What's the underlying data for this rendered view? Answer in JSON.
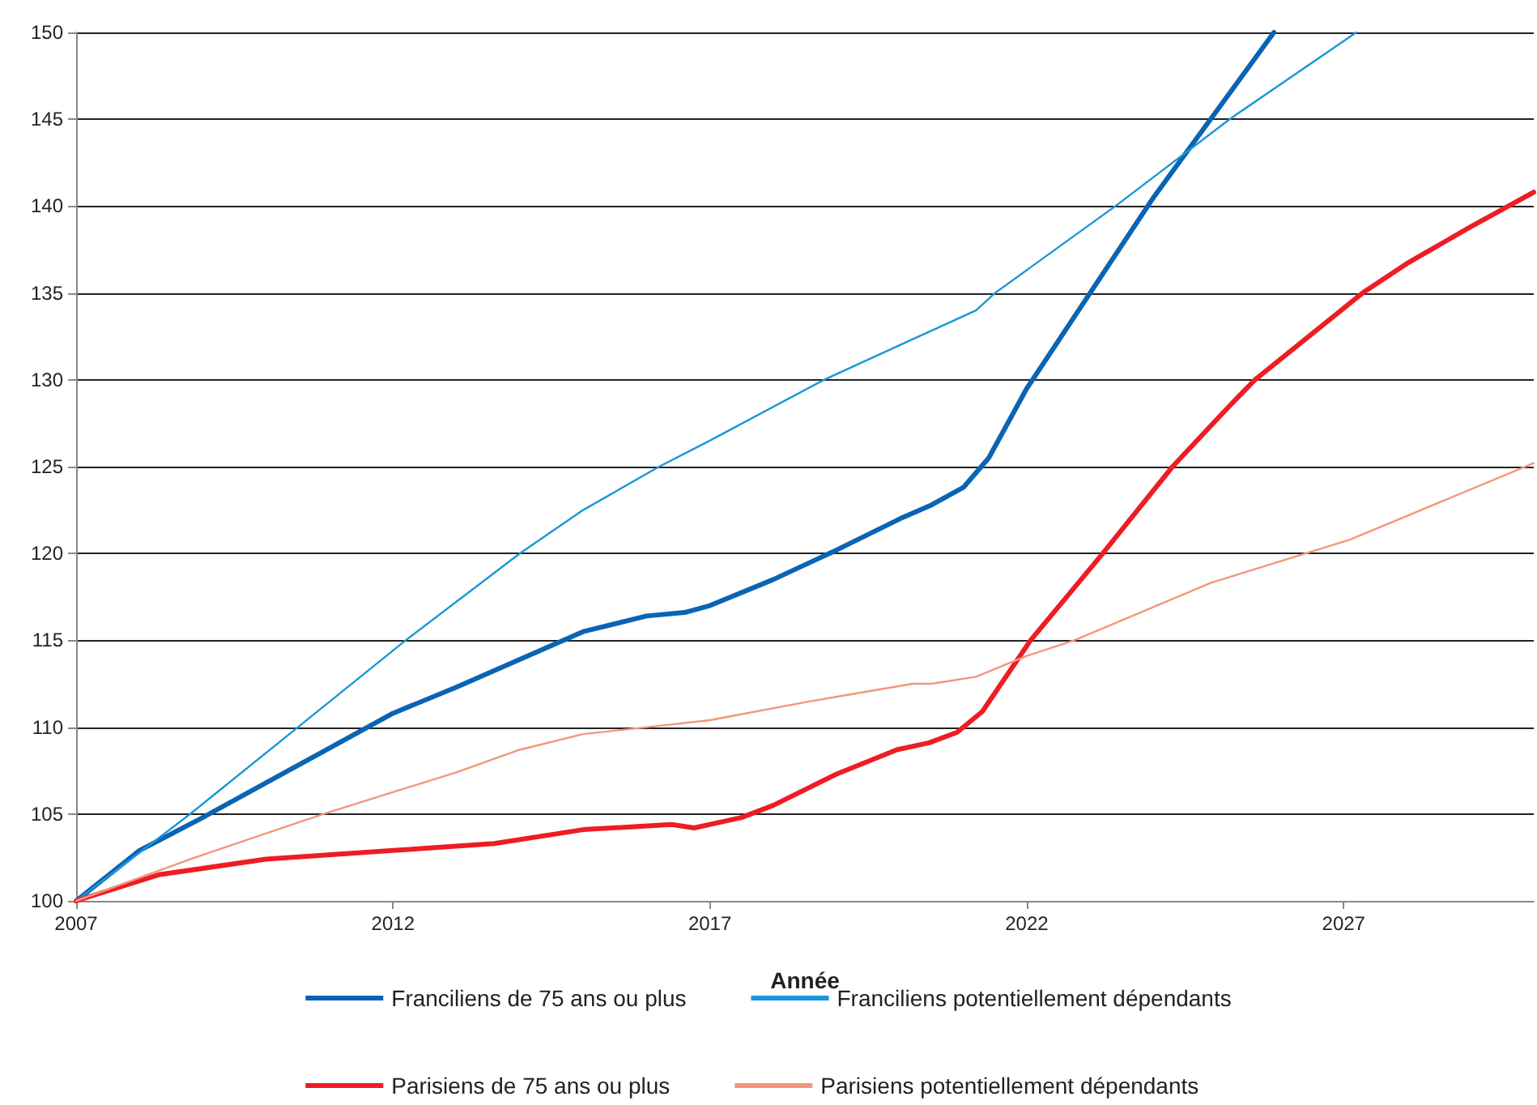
{
  "chart_data": {
    "type": "line",
    "xlabel": "Année",
    "xlim": [
      2007,
      2030
    ],
    "xticks": [
      2007,
      2012,
      2017,
      2022,
      2027
    ],
    "ylim": [
      100,
      150
    ],
    "yticks": [
      100,
      105,
      110,
      115,
      120,
      125,
      130,
      135,
      140,
      145,
      150
    ],
    "grid": "y",
    "legend": "bottom",
    "marker": "none",
    "line_style": "solid",
    "series": [
      {
        "name": "Franciliens de 75 ans ou plus",
        "color": "#0a64b4",
        "x": [
          2007,
          2008,
          2009,
          2010,
          2011,
          2012,
          2013,
          2014,
          2015,
          2016,
          2016.6,
          2017,
          2018,
          2019,
          2020,
          2020.5,
          2021,
          2021.4,
          2022,
          2023,
          2024,
          2025,
          2025.9
        ],
        "values": [
          100,
          102.9,
          104.8,
          106.8,
          108.8,
          110.8,
          112.3,
          113.9,
          115.5,
          116.4,
          116.6,
          117.0,
          118.5,
          120.2,
          122.0,
          122.8,
          123.8,
          125.5,
          129.5,
          135,
          140.5,
          145.5,
          150
        ]
      },
      {
        "name": "Franciliens potentiellement dépendants",
        "color": "#1a96d8",
        "x": [
          2007,
          2008.8,
          2010.5,
          2012.2,
          2014,
          2015,
          2016.2,
          2017,
          2018.8,
          2020,
          2021.2,
          2021.5,
          2023.4,
          2025.2,
          2027.2
        ],
        "values": [
          100,
          105,
          110,
          115,
          120,
          122.5,
          125,
          126.5,
          130,
          132,
          134,
          135,
          140,
          145,
          150
        ]
      },
      {
        "name": "Parisiens de 75 ans ou plus",
        "color": "#ee1c25",
        "x": [
          2007,
          2008.3,
          2010,
          2012,
          2013.6,
          2015,
          2016.4,
          2016.75,
          2017.5,
          2018,
          2019,
          2019.95,
          2020.46,
          2020.9,
          2021.3,
          2022.06,
          2023.2,
          2024.3,
          2025.2,
          2025.6,
          2027.3,
          2028,
          2029,
          2030
        ],
        "values": [
          100,
          101.5,
          102.4,
          102.9,
          103.3,
          104.1,
          104.4,
          104.2,
          104.8,
          105.5,
          107.3,
          108.7,
          109.1,
          109.7,
          110.9,
          115,
          120,
          125,
          128.5,
          130,
          135,
          136.7,
          138.8,
          140.8
        ]
      },
      {
        "name": "Parisiens potentiellement dépendants",
        "color": "#f4967a",
        "x": [
          2007,
          2008.8,
          2010.9,
          2013,
          2014,
          2015,
          2016,
          2017,
          2018.6,
          2020.2,
          2020.5,
          2021.2,
          2022,
          2022.75,
          2024.9,
          2026.4,
          2027.1,
          2030
        ],
        "values": [
          100,
          102.4,
          105,
          107.4,
          108.7,
          109.6,
          110,
          110.4,
          111.5,
          112.5,
          112.5,
          112.9,
          114.1,
          115,
          118.3,
          120,
          120.8,
          125.2
        ]
      }
    ]
  }
}
